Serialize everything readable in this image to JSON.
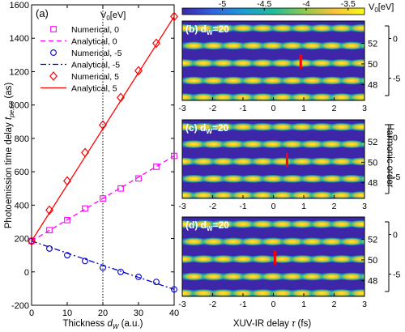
{
  "chart_data": [
    {
      "panel": "(a)",
      "type": "line",
      "xlabel": "Thickness d_W (a.u.)",
      "ylabel": "Photoemission time delay t_pe,50 (as)",
      "xlim": [
        0,
        40
      ],
      "ylim": [
        -200,
        1600
      ],
      "xticks": [
        0,
        10,
        20,
        30,
        40
      ],
      "yticks": [
        -200,
        0,
        200,
        400,
        600,
        800,
        1000,
        1200,
        1400,
        1600
      ],
      "vline_x": 20,
      "legend_title": "V",
      "legend_title_sub": "0",
      "legend_title_unit": "[eV]",
      "legend_position": "top-left",
      "series": [
        {
          "name": "Numerical,  0",
          "color": "#ff00ff",
          "marker": "square",
          "x": [
            0,
            5,
            10,
            15,
            20,
            25,
            30,
            35,
            40
          ],
          "y": [
            185,
            250,
            310,
            380,
            440,
            500,
            560,
            630,
            695
          ]
        },
        {
          "name": "Analytical,  0",
          "color": "#ff00ff",
          "line": "dashed",
          "x": [
            0,
            40
          ],
          "y": [
            185,
            695
          ]
        },
        {
          "name": "Numerical, -5",
          "color": "#0000cc",
          "marker": "circle",
          "x": [
            0,
            5,
            10,
            15,
            20,
            25,
            30,
            35,
            40
          ],
          "y": [
            185,
            140,
            100,
            65,
            25,
            0,
            -30,
            -60,
            -105
          ]
        },
        {
          "name": "Analytical, -5",
          "color": "#0000cc",
          "line": "dashdot",
          "x": [
            0,
            40
          ],
          "y": [
            185,
            -105
          ]
        },
        {
          "name": "Numerical,  5",
          "color": "#ff0000",
          "marker": "diamond",
          "x": [
            0,
            5,
            10,
            15,
            20,
            25,
            30,
            35,
            40
          ],
          "y": [
            185,
            370,
            545,
            715,
            880,
            1045,
            1205,
            1370,
            1530
          ]
        },
        {
          "name": "Analytical,  5",
          "color": "#ff0000",
          "line": "solid",
          "x": [
            0,
            40
          ],
          "y": [
            185,
            1530
          ]
        }
      ]
    },
    {
      "panels": [
        "(b)",
        "(c)",
        "(d)"
      ],
      "type": "heatmap",
      "subscript_label": "d",
      "subscript_sub": "W",
      "subscript_value": "=20",
      "xlabel": "XUV-IR delay τ (fs)",
      "ylabel": "Harmonic order",
      "xlim": [
        -3,
        3
      ],
      "xticks": [
        -3,
        -2,
        -1,
        0,
        1,
        2,
        3
      ],
      "yticks": [
        48,
        50,
        52
      ],
      "colorbar_ticks": [
        -5,
        -4.5,
        -4,
        -3.5
      ],
      "colorbar_label": "V",
      "colorbar_label_sub": "0",
      "colorbar_label_unit": "[eV]",
      "colormap": [
        "#3d26a8",
        "#2f64e5",
        "#1d9bd5",
        "#1fbc9b",
        "#8dcb4b",
        "#f9c03a",
        "#f9fa13"
      ],
      "marker_color": "#ff0000",
      "marker_delay_fs": [
        0.9,
        0.45,
        0.05
      ],
      "v0_axis_ticks": [
        [
          0,
          -5
        ],
        [
          0,
          -5
        ],
        [
          0,
          -5
        ]
      ]
    }
  ]
}
